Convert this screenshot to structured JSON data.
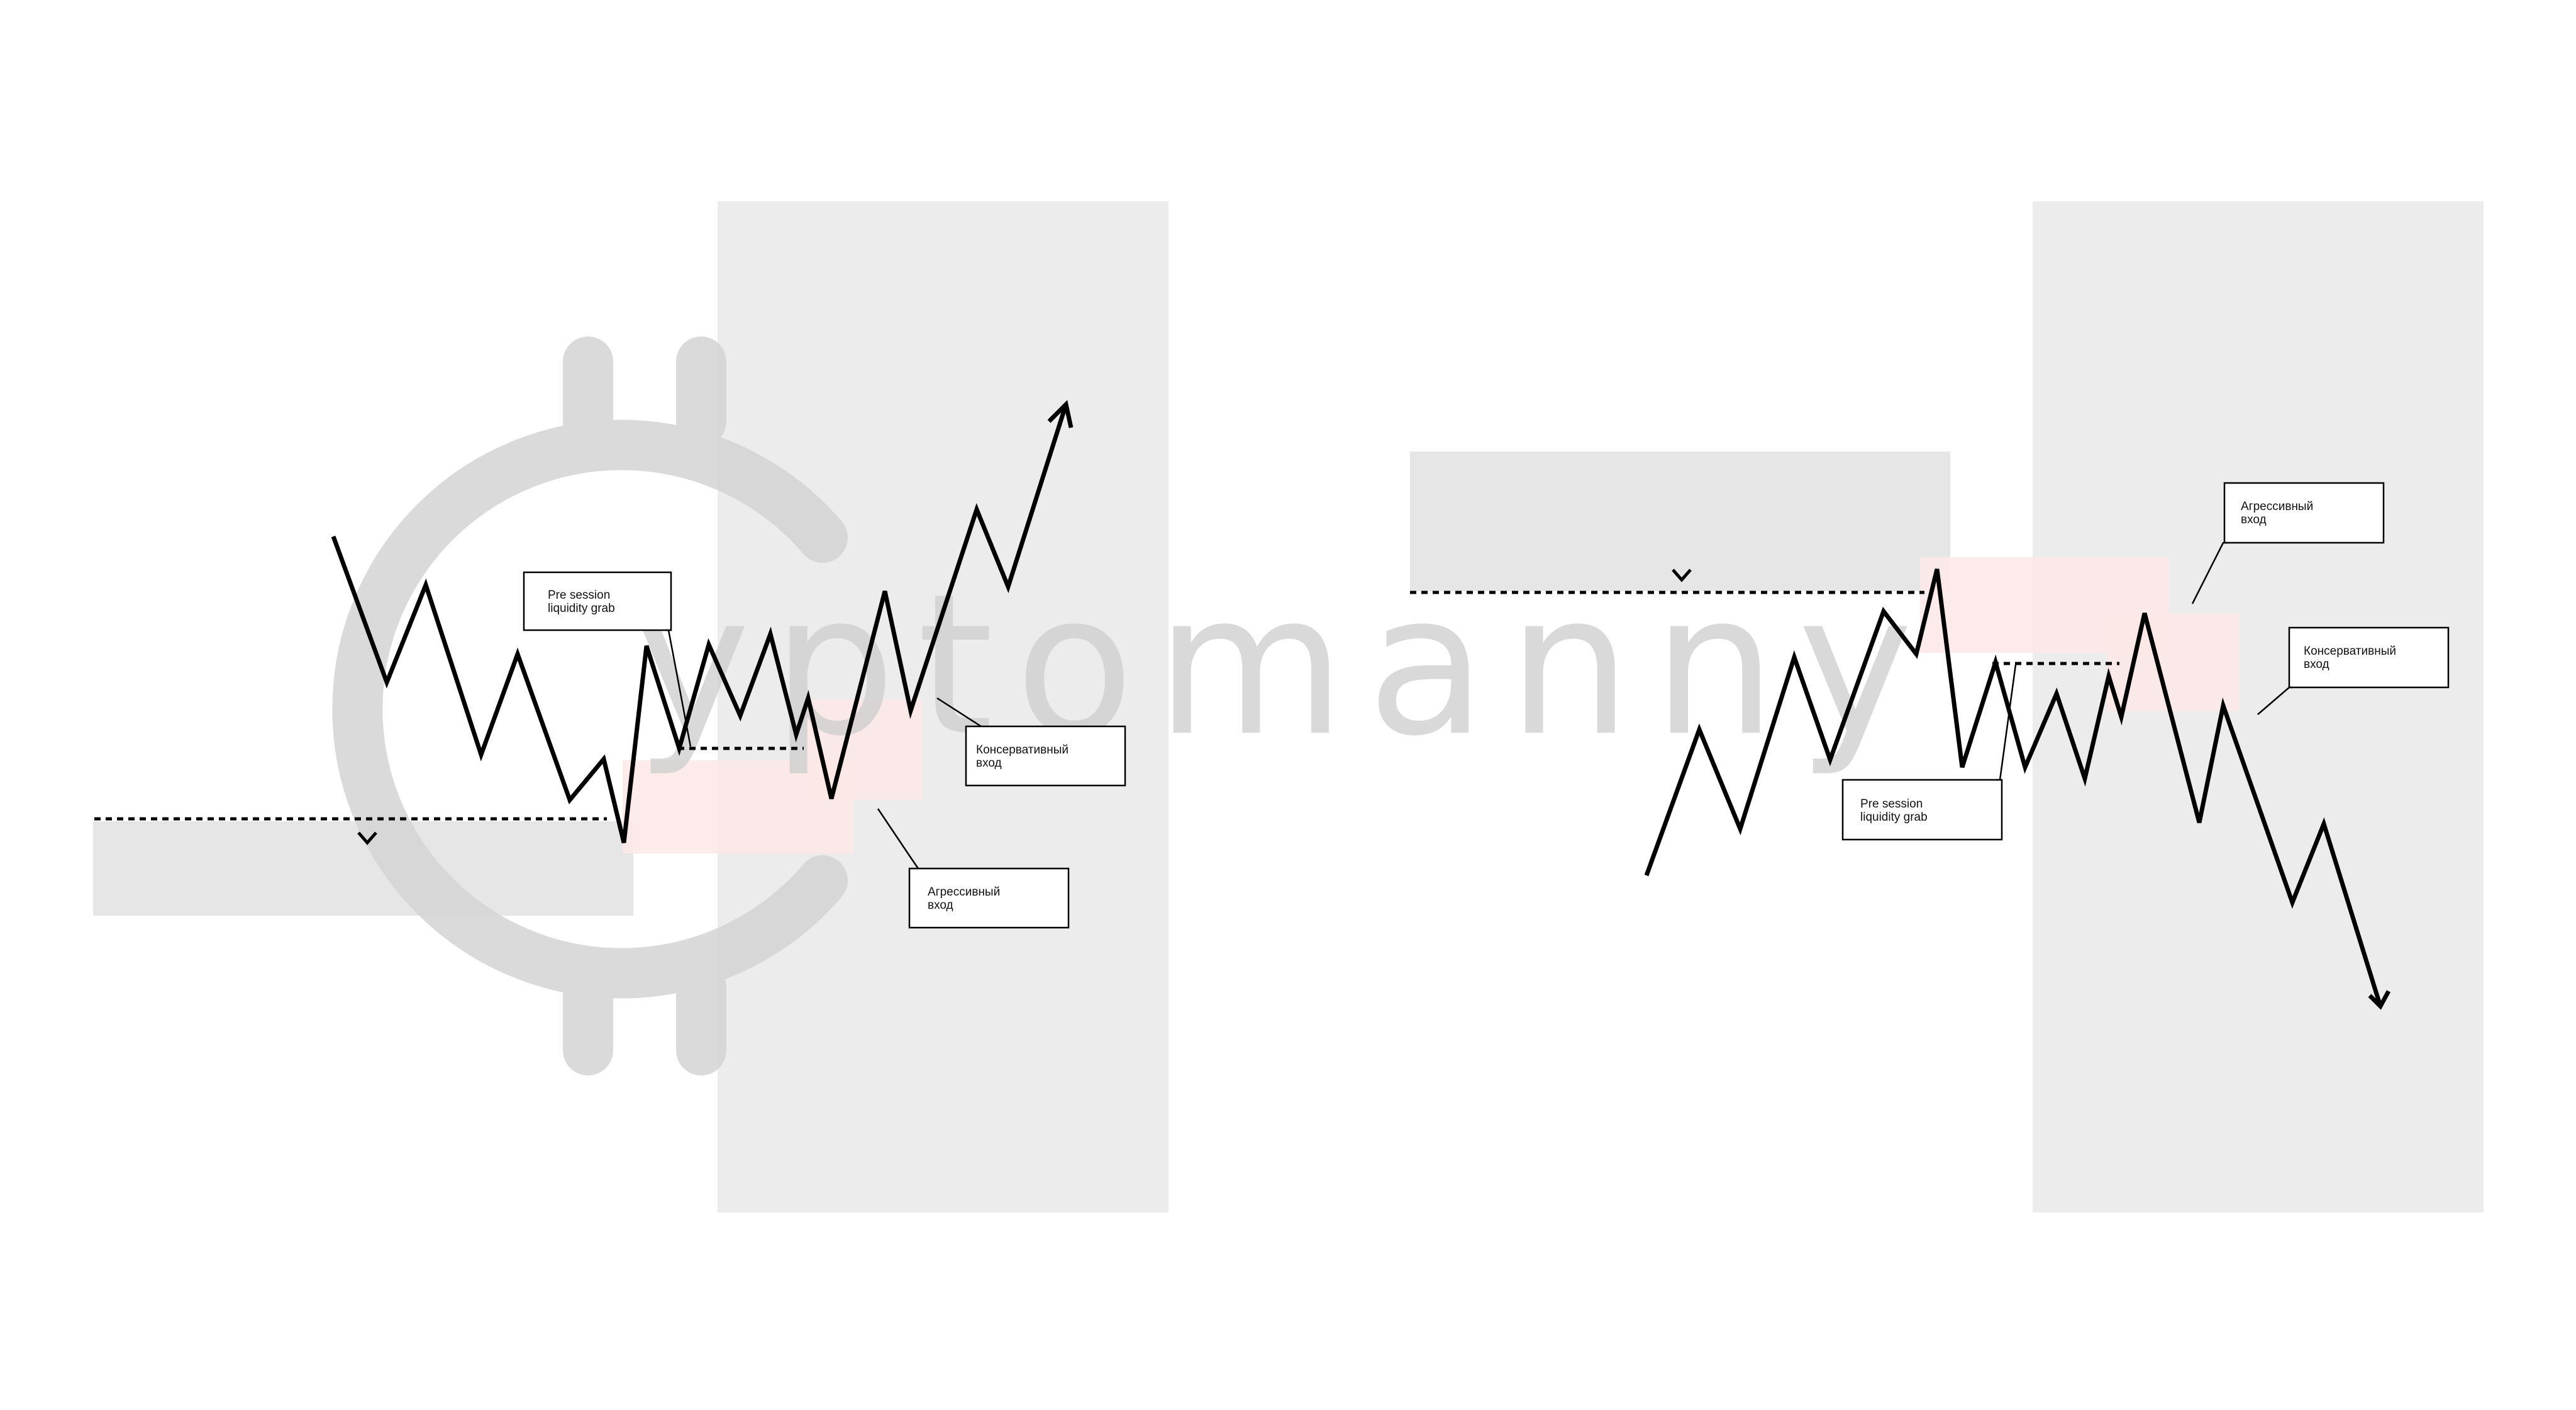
{
  "colors": {
    "background": "#ffffff",
    "session_zone": "#ececec",
    "liquidity_zone": "#e6e6e6",
    "fvg_zone": "#fde8e8",
    "price_line": "#000000",
    "watermark": "#d0d0d0"
  },
  "watermark": {
    "logo": "cryptomannn-coin-logo",
    "text": "yptomanny"
  },
  "left_diagram": {
    "direction": "bullish",
    "callout_pre_session": {
      "line1": "Pre session",
      "line2": "liquidity grab"
    },
    "callout_conservative": {
      "line1": "Консервативный",
      "line2": "вход"
    },
    "callout_aggressive": {
      "line1": "Агрессивный",
      "line2": "вход"
    }
  },
  "right_diagram": {
    "direction": "bearish",
    "callout_aggressive": {
      "line1": "Агрессивный",
      "line2": "вход"
    },
    "callout_conservative": {
      "line1": "Консервативный",
      "line2": "вход"
    },
    "callout_pre_session": {
      "line1": "Pre session",
      "line2": "liquidity grab"
    }
  }
}
